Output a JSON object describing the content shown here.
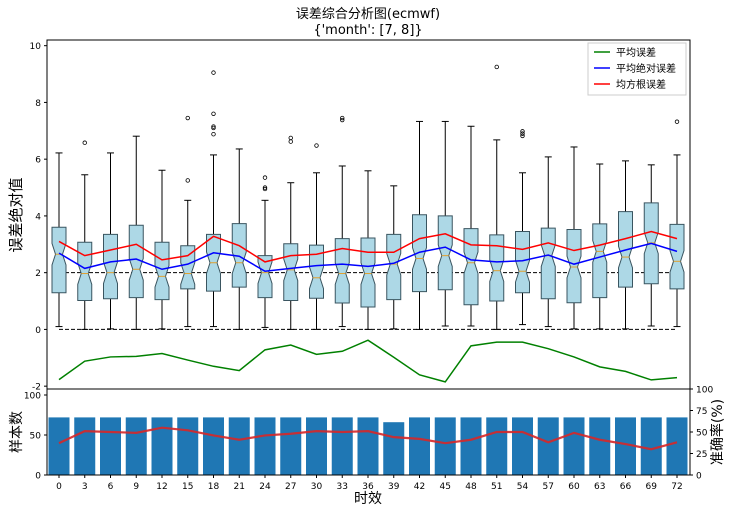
{
  "chart_data": [
    {
      "type": "box",
      "title": "误差综合分析图(ecmwf)",
      "subtitle": "{'month': [7, 8]}",
      "ylabel": "误差绝对值",
      "ylim": [
        -2.1,
        10.2
      ],
      "yticks": [
        -2,
        0,
        2,
        4,
        6,
        8,
        10
      ],
      "categories": [
        0,
        3,
        6,
        9,
        12,
        15,
        18,
        21,
        24,
        27,
        30,
        33,
        36,
        39,
        42,
        45,
        48,
        51,
        54,
        57,
        60,
        63,
        66,
        69,
        72
      ],
      "reference_lines": [
        0,
        2
      ],
      "boxes": {
        "q1": [
          1.29,
          1.02,
          1.08,
          1.12,
          1.05,
          1.43,
          1.35,
          1.49,
          1.12,
          1.02,
          1.1,
          0.93,
          0.79,
          1.05,
          1.33,
          1.4,
          0.87,
          1.0,
          1.29,
          1.08,
          0.94,
          1.12,
          1.49,
          1.61,
          1.43
        ],
        "median": [
          2.65,
          1.97,
          2.0,
          2.12,
          1.87,
          1.97,
          2.35,
          2.35,
          2.0,
          2.1,
          1.82,
          1.97,
          1.97,
          2.3,
          2.5,
          2.6,
          2.35,
          2.07,
          2.05,
          2.6,
          2.2,
          2.75,
          2.55,
          3.05,
          2.4
        ],
        "q3": [
          3.6,
          3.07,
          3.35,
          3.67,
          3.07,
          2.95,
          3.35,
          3.73,
          2.6,
          3.02,
          2.97,
          3.2,
          3.22,
          3.35,
          4.04,
          4.0,
          3.55,
          3.33,
          3.45,
          3.57,
          3.52,
          3.72,
          4.15,
          4.46,
          3.7
        ],
        "whisker_low": [
          0.1,
          0.0,
          0.02,
          0.0,
          0.02,
          0.1,
          0.1,
          0.0,
          0.07,
          0.0,
          0.0,
          0.1,
          0.0,
          0.02,
          0.0,
          0.12,
          0.12,
          0.0,
          0.17,
          0.1,
          0.02,
          0.02,
          0.02,
          0.12,
          0.1
        ],
        "whisker_high": [
          6.22,
          5.45,
          6.22,
          6.81,
          5.61,
          4.55,
          6.15,
          6.36,
          4.55,
          5.17,
          5.52,
          5.76,
          5.59,
          5.06,
          7.33,
          7.33,
          7.16,
          6.68,
          5.52,
          6.08,
          6.43,
          5.83,
          5.94,
          5.8,
          6.15
        ],
        "outliers": [
          [],
          [
            6.58
          ],
          [],
          [],
          [],
          [
            7.45,
            5.25
          ],
          [
            9.05,
            7.6,
            7.15,
            7.1,
            6.88
          ],
          [],
          [
            5.35,
            5.0,
            4.95
          ],
          [
            6.75,
            6.62
          ],
          [
            6.48
          ],
          [
            7.45,
            7.38
          ],
          [],
          [],
          [],
          [],
          [],
          [
            9.25
          ],
          [
            6.98,
            6.9,
            6.82
          ],
          [],
          [],
          [],
          [],
          [],
          [
            7.32
          ]
        ]
      },
      "series": [
        {
          "name": "平均误差",
          "color": "#008000",
          "values": [
            -1.77,
            -1.12,
            -0.97,
            -0.95,
            -0.85,
            -1.08,
            -1.3,
            -1.45,
            -0.72,
            -0.55,
            -0.88,
            -0.77,
            -0.38,
            -0.98,
            -1.6,
            -1.85,
            -0.58,
            -0.45,
            -0.45,
            -0.68,
            -0.97,
            -1.32,
            -1.48,
            -1.78,
            -1.7
          ]
        },
        {
          "name": "平均绝对误差",
          "color": "#0000ff",
          "values": [
            2.69,
            2.15,
            2.38,
            2.48,
            2.12,
            2.3,
            2.7,
            2.58,
            2.05,
            2.15,
            2.25,
            2.3,
            2.22,
            2.33,
            2.72,
            2.9,
            2.45,
            2.38,
            2.42,
            2.62,
            2.3,
            2.55,
            2.8,
            3.03,
            2.75
          ]
        },
        {
          "name": "均方根误差",
          "color": "#ff0000",
          "values": [
            3.1,
            2.6,
            2.8,
            3.0,
            2.45,
            2.6,
            3.28,
            2.95,
            2.38,
            2.6,
            2.65,
            2.85,
            2.72,
            2.72,
            3.2,
            3.37,
            2.98,
            2.95,
            2.82,
            3.05,
            2.78,
            2.97,
            3.2,
            3.45,
            3.2
          ]
        }
      ],
      "legend": "top-right",
      "box_color": "#add8e6"
    },
    {
      "type": "bar",
      "xlabel": "时效",
      "ylabel": "样本数",
      "ylabel_right": "准确率(%)",
      "ylim": [
        0,
        107.5
      ],
      "yticks": [
        0,
        50,
        100
      ],
      "ylim_right": [
        0,
        100
      ],
      "yticks_right": [
        0,
        25,
        50,
        75,
        100
      ],
      "categories": [
        0,
        3,
        6,
        9,
        12,
        15,
        18,
        21,
        24,
        27,
        30,
        33,
        36,
        39,
        42,
        45,
        48,
        51,
        54,
        57,
        60,
        63,
        66,
        69,
        72
      ],
      "values": [
        72,
        72,
        72,
        72,
        72,
        72,
        72,
        72,
        72,
        72,
        72,
        72,
        72,
        66,
        72,
        72,
        72,
        72,
        72,
        72,
        72,
        72,
        72,
        72,
        72
      ],
      "bar_color": "#1f77b4",
      "accuracy": {
        "name": "准确率",
        "color": "#d62728",
        "values": [
          37,
          51,
          50,
          49,
          55,
          52,
          46,
          41,
          46,
          48,
          51,
          50,
          51,
          44,
          42,
          37,
          41,
          50,
          50,
          38,
          49,
          41,
          36,
          30,
          38
        ]
      }
    }
  ]
}
